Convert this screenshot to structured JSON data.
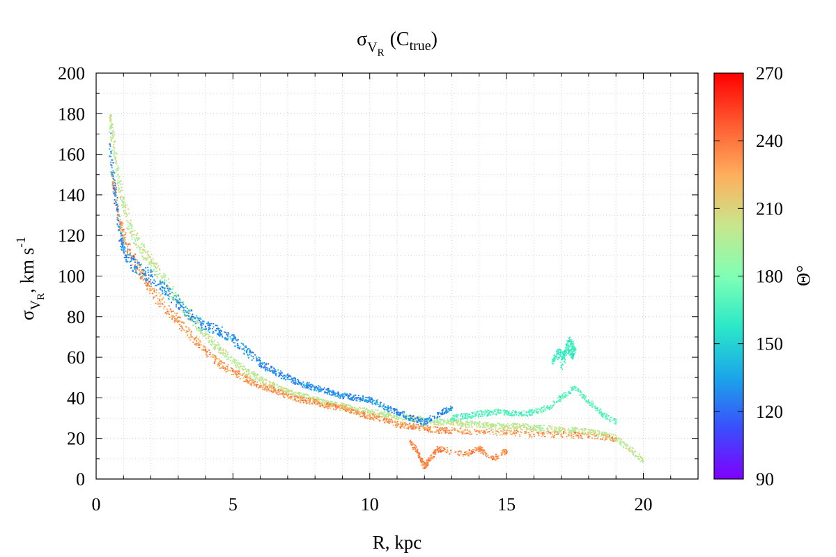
{
  "chart_data": {
    "type": "scatter",
    "title": "σ V R (C true)",
    "title_parts": {
      "sigma": "σ",
      "v": "V",
      "r": "R",
      "c": "(C",
      "true": "true",
      "close": ")"
    },
    "xlabel": "R, kpc",
    "ylabel_parts": {
      "sigma": "σ",
      "v": "V",
      "r": "R",
      "rest": ", km s",
      "exp": "-1"
    },
    "xlim": [
      0,
      22
    ],
    "ylim": [
      0,
      200
    ],
    "x_ticks": [
      0,
      5,
      10,
      15,
      20
    ],
    "x_tick_labels": [
      "0",
      "5",
      "10",
      "15",
      "20"
    ],
    "y_ticks": [
      0,
      20,
      40,
      60,
      80,
      100,
      120,
      140,
      160,
      180,
      200
    ],
    "y_tick_labels": [
      "0",
      "20",
      "40",
      "60",
      "80",
      "100",
      "120",
      "140",
      "160",
      "180",
      "200"
    ],
    "grid": true,
    "colorbar": {
      "label": "Θ°",
      "range": [
        90,
        270
      ],
      "ticks": [
        90,
        120,
        150,
        180,
        210,
        240,
        270
      ],
      "tick_labels": [
        "90",
        "120",
        "150",
        "180",
        "210",
        "240",
        "270"
      ],
      "colors": [
        "#7f00ff",
        "#3a4efc",
        "#1ba6e9",
        "#2be8c8",
        "#80ffb4",
        "#c8e68c",
        "#ffae5c",
        "#fe5a30",
        "#ff0000"
      ]
    },
    "series": [
      {
        "name": "theta_200_main",
        "theta": 200,
        "x": [
          0.5,
          0.6,
          0.8,
          1.0,
          1.3,
          1.7,
          2.0,
          2.5,
          3.0,
          3.5,
          4.0,
          4.5,
          5.0,
          5.5,
          6.0,
          6.5,
          7.0,
          7.5,
          8.0,
          8.5,
          9.0,
          9.5,
          10.0,
          10.5,
          11.0,
          11.5,
          12.0,
          12.5,
          13.0,
          13.5,
          14.0,
          14.5,
          15.0,
          15.5,
          16.0,
          16.5,
          17.0,
          17.5,
          18.0,
          18.5,
          19.0,
          19.5,
          20.0
        ],
        "y": [
          178,
          168,
          150,
          135,
          122,
          113,
          107,
          98,
          88,
          79,
          71,
          64,
          58,
          53,
          49,
          46,
          43,
          41,
          39,
          37,
          36,
          34,
          33,
          32,
          31,
          30,
          29,
          28,
          28,
          27,
          27,
          26,
          26,
          26,
          25,
          25,
          24,
          24,
          23,
          22,
          20,
          15,
          9
        ]
      },
      {
        "name": "theta_230_lower",
        "theta": 230,
        "x": [
          0.6,
          0.8,
          1.0,
          1.3,
          1.7,
          2.0,
          2.5,
          3.0,
          3.5,
          4.0,
          4.5,
          5.0,
          5.5,
          6.0,
          6.5,
          7.0,
          7.5,
          8.0,
          8.5,
          9.0,
          9.5,
          10.0,
          10.5,
          11.0,
          11.5,
          12.0,
          12.5,
          13.0,
          14.0,
          15.0,
          16.0,
          17.0,
          18.0,
          19.0
        ],
        "y": [
          150,
          132,
          120,
          110,
          100,
          93,
          85,
          78,
          70,
          63,
          57,
          53,
          49,
          46,
          44,
          41,
          39,
          38,
          36,
          35,
          33,
          31,
          29,
          27,
          26,
          25,
          24,
          24,
          23,
          23,
          22,
          22,
          21,
          20
        ]
      },
      {
        "name": "theta_130_upper",
        "theta": 130,
        "x": [
          0.5,
          0.7,
          0.9,
          1.1,
          1.5,
          2.0,
          2.5,
          3.0,
          3.5,
          4.0,
          4.5,
          5.0,
          5.5,
          6.0,
          6.5,
          7.0,
          7.5,
          8.0,
          8.5,
          9.0,
          9.5,
          10.0,
          10.5,
          11.0,
          11.5,
          12.0,
          12.5,
          13.0
        ],
        "y": [
          165,
          140,
          118,
          110,
          104,
          100,
          94,
          87,
          80,
          75,
          73,
          69,
          63,
          57,
          53,
          50,
          47,
          45,
          43,
          41,
          40,
          39,
          36,
          33,
          30,
          28,
          32,
          35
        ]
      },
      {
        "name": "theta_170_outer",
        "theta": 170,
        "x": [
          13.0,
          13.5,
          14.0,
          14.5,
          15.0,
          15.5,
          16.0,
          16.5,
          17.0,
          17.5,
          18.0,
          18.5,
          19.0
        ],
        "y": [
          30,
          31,
          32,
          33,
          33,
          32,
          33,
          35,
          40,
          45,
          38,
          32,
          28
        ]
      },
      {
        "name": "theta_165_clump",
        "theta": 165,
        "x": [
          16.7,
          16.9,
          17.1,
          17.2,
          17.4,
          17.5,
          17.3,
          17.0
        ],
        "y": [
          58,
          62,
          60,
          66,
          61,
          64,
          68,
          55
        ]
      },
      {
        "name": "theta_235_scatter_low",
        "theta": 235,
        "x": [
          11.5,
          11.8,
          12.0,
          12.2,
          12.5,
          13.5,
          14.0,
          14.5,
          15.0
        ],
        "y": [
          18,
          12,
          6,
          10,
          15,
          12,
          15,
          10,
          14
        ]
      }
    ]
  }
}
